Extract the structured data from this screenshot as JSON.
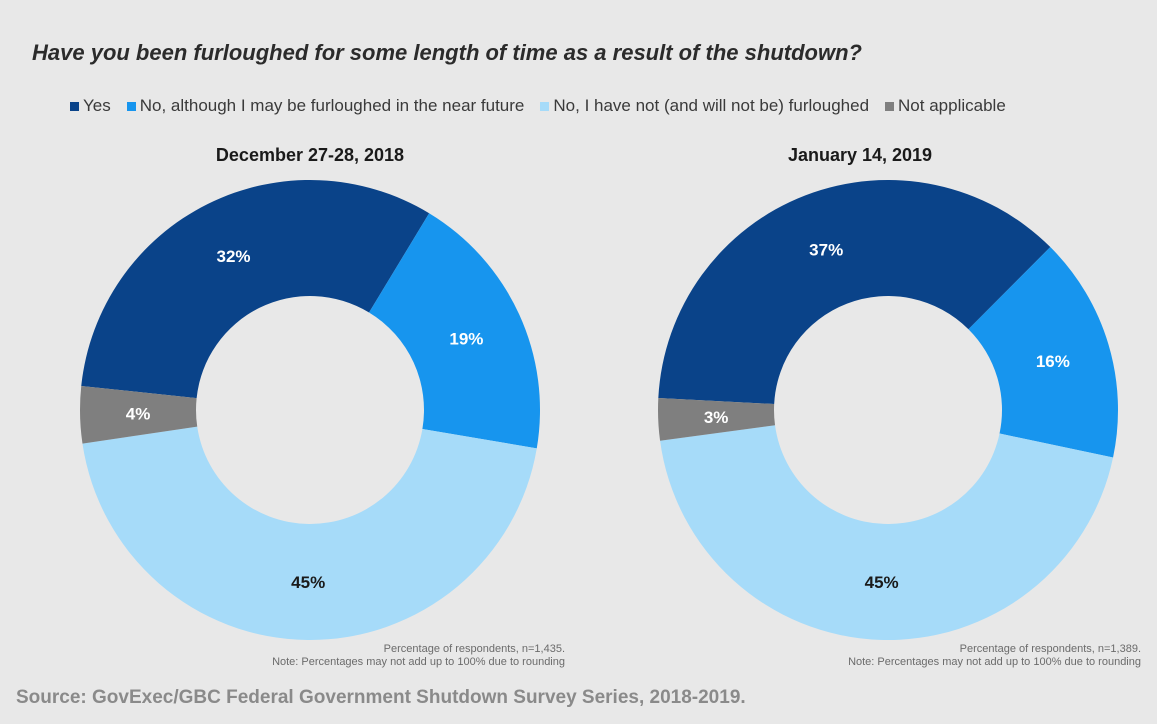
{
  "title": "Have you been furloughed for some length of time as a result of the shutdown?",
  "legend": [
    {
      "label": "Yes",
      "color": "#0a4389"
    },
    {
      "label": "No, although I may be furloughed in the near future",
      "color": "#1795ee"
    },
    {
      "label": "No, I have not (and will not be) furloughed",
      "color": "#a6dbf9"
    },
    {
      "label": "Not applicable",
      "color": "#7f7f7f"
    }
  ],
  "chart_data": [
    {
      "type": "pie",
      "title": "December 27-28, 2018",
      "categories": [
        "Yes",
        "No, although I may be furloughed in the near future",
        "No, I have not (and will not be) furloughed",
        "Not applicable"
      ],
      "values": [
        32,
        19,
        45,
        4
      ],
      "labels": [
        "32%",
        "19%",
        "45%",
        "4%"
      ],
      "note_line1": "Percentage of respondents, n=1,435.",
      "note_line2": "Note: Percentages may not add up to 100% due to rounding"
    },
    {
      "type": "pie",
      "title": "January 14, 2019",
      "categories": [
        "Yes",
        "No, although I may be furloughed in the near future",
        "No, I have not (and will not be) furloughed",
        "Not applicable"
      ],
      "values": [
        37,
        16,
        45,
        3
      ],
      "labels": [
        "37%",
        "16%",
        "45%",
        "3%"
      ],
      "note_line1": "Percentage of respondents, n=1,389.",
      "note_line2": "Note: Percentages may not add up to 100% due to rounding"
    }
  ],
  "source": "Source: GovExec/GBC Federal Government Shutdown Survey Series, 2018-2019."
}
